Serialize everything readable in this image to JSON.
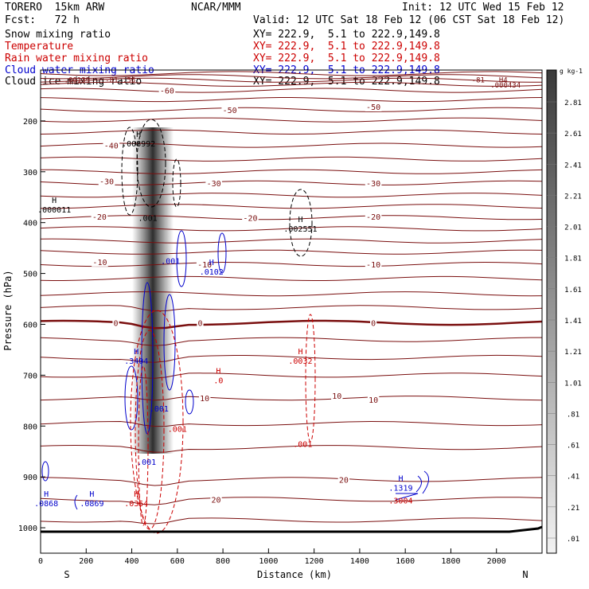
{
  "header": {
    "model": "TORERO  15km ARW",
    "center": "NCAR/MMM",
    "init": "Init: 12 UTC Wed 15 Feb 12",
    "fcst": "Fcst:   72 h",
    "valid": "Valid: 12 UTC Sat 18 Feb 12 (06 CST Sat 18 Feb 12)"
  },
  "fields": [
    {
      "name": "Snow mixing ratio",
      "xy": "XY= 222.9,  5.1 to 222.9,149.8",
      "color": "#000000"
    },
    {
      "name": "Temperature",
      "xy": "XY= 222.9,  5.1 to 222.9,149.8",
      "color": "#cc0000"
    },
    {
      "name": "Rain water mixing ratio",
      "xy": "XY= 222.9,  5.1 to 222.9,149.8",
      "color": "#cc0000"
    },
    {
      "name": "Cloud water mixing ratio",
      "xy": "XY= 222.9,  5.1 to 222.9,149.8",
      "color": "#0000cc"
    },
    {
      "name": "Cloud ice mixing ratio",
      "xy": "XY= 222.9,  5.1 to 222.9,149.8",
      "color": "#000000"
    }
  ],
  "chart_data": {
    "type": "cross-section",
    "xlabel": "Distance (km)",
    "ylabel": "Pressure (hPa)",
    "xlim": [
      0,
      2200
    ],
    "ylim": [
      1050,
      100
    ],
    "x_ticks": [
      0,
      200,
      400,
      600,
      800,
      1000,
      1200,
      1400,
      1600,
      1800,
      2000
    ],
    "y_ticks": [
      200,
      300,
      400,
      500,
      600,
      700,
      800,
      900,
      1000
    ],
    "ends": {
      "left": "S",
      "right": "N"
    },
    "colorbar": {
      "unit": "g kg-1",
      "labels": [
        "2.81",
        "2.61",
        "2.41",
        "2.21",
        "2.01",
        "1.81",
        "1.61",
        "1.41",
        "1.21",
        "1.01",
        ".81",
        ".61",
        ".41",
        ".21",
        ".01"
      ]
    },
    "temperature_labels": [
      {
        "text": "-60",
        "x": 555,
        "p": 140
      },
      {
        "text": "-50",
        "x": 830,
        "p": 178
      },
      {
        "text": "-50",
        "x": 1460,
        "p": 172
      },
      {
        "text": "-40",
        "x": 310,
        "p": 248
      },
      {
        "text": "-30",
        "x": 290,
        "p": 318
      },
      {
        "text": "-30",
        "x": 760,
        "p": 322
      },
      {
        "text": "-30",
        "x": 1460,
        "p": 322
      },
      {
        "text": "-20",
        "x": 258,
        "p": 388
      },
      {
        "text": "-20",
        "x": 920,
        "p": 390
      },
      {
        "text": "-20",
        "x": 1460,
        "p": 388
      },
      {
        "text": "-10",
        "x": 260,
        "p": 477
      },
      {
        "text": "-10",
        "x": 720,
        "p": 482
      },
      {
        "text": "-10",
        "x": 1460,
        "p": 482
      },
      {
        "text": "0",
        "x": 330,
        "p": 597
      },
      {
        "text": "0",
        "x": 700,
        "p": 597
      },
      {
        "text": "0",
        "x": 1460,
        "p": 597
      },
      {
        "text": "10",
        "x": 720,
        "p": 745
      },
      {
        "text": "10",
        "x": 1300,
        "p": 740
      },
      {
        "text": "10",
        "x": 1460,
        "p": 748
      },
      {
        "text": "20",
        "x": 770,
        "p": 944
      },
      {
        "text": "20",
        "x": 1330,
        "p": 905
      }
    ],
    "extrema": [
      {
        "text": "H",
        "value": ".000011",
        "x": 60,
        "p": 368,
        "color": "#000000"
      },
      {
        "text": "H",
        "value": ".008992",
        "x": 430,
        "p": 238,
        "color": "#000000"
      },
      {
        "text": "H",
        "value": ".002551",
        "x": 1140,
        "p": 405,
        "color": "#000000"
      },
      {
        "text": "H",
        "value": ".0102",
        "x": 750,
        "p": 490,
        "color": "#0000cc"
      },
      {
        "text": "H",
        "value": ".3404",
        "x": 420,
        "p": 665,
        "color": "#0000cc"
      },
      {
        "text": "H",
        "value": ".0868",
        "x": 25,
        "p": 945,
        "color": "#0000cc"
      },
      {
        "text": "H",
        "value": ".0869",
        "x": 225,
        "p": 945,
        "color": "#0000cc"
      },
      {
        "text": "H",
        "value": ".0032",
        "x": 1140,
        "p": 665,
        "color": "#cc0000"
      },
      {
        "text": "H",
        "value": ".0",
        "x": 780,
        "p": 703,
        "color": "#cc0000"
      },
      {
        "text": "H",
        "value": ".0354",
        "x": 420,
        "p": 945,
        "color": "#cc0000"
      },
      {
        "text": "H",
        "value": ".1319",
        "x": 1580,
        "p": 915,
        "color": "#0000cc"
      },
      {
        "text": "",
        "value": ".3004",
        "x": 1580,
        "p": 940,
        "color": "#cc0000"
      }
    ],
    "small_labels": [
      {
        "text": ".001",
        "x": 470,
        "p": 390,
        "color": "#000000"
      },
      {
        "text": ".001",
        "x": 570,
        "p": 475,
        "color": "#0000cc"
      },
      {
        "text": ".001",
        "x": 520,
        "p": 765,
        "color": "#0000cc"
      },
      {
        "text": ".001",
        "x": 600,
        "p": 805,
        "color": "#cc0000"
      },
      {
        "text": ".001",
        "x": 465,
        "p": 870,
        "color": "#0000cc"
      },
      {
        "text": ".001",
        "x": 1150,
        "p": 835,
        "color": "#cc0000"
      }
    ],
    "top_labels": [
      {
        "text": ".00139",
        "x": 160,
        "p": 118
      },
      {
        "text": "-81 .56",
        "x": 350,
        "p": 118
      },
      {
        "text": "-81",
        "x": 1920,
        "p": 118
      },
      {
        "text": "H4",
        "x": 2030,
        "p": 118
      },
      {
        "text": ".000434",
        "x": 2040,
        "p": 128
      }
    ]
  }
}
